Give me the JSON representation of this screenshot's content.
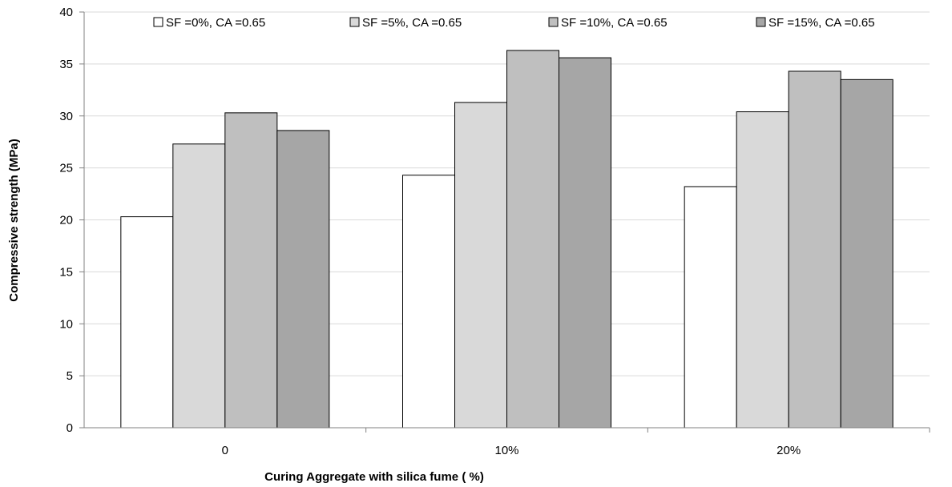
{
  "chart_data": {
    "type": "bar",
    "title": "",
    "xlabel": "Curing Aggregate with silica fume  ( %)",
    "ylabel": "Compressive strength (MPa)",
    "categories": [
      "0",
      "10%",
      "20%"
    ],
    "ylim": [
      0,
      40
    ],
    "yticks": [
      0,
      5,
      10,
      15,
      20,
      25,
      30,
      35,
      40
    ],
    "grid": "horizontal",
    "legend_position": "top",
    "series": [
      {
        "name": "SF =0%, CA =0.65",
        "values": [
          20.3,
          24.3,
          23.2
        ],
        "color": "#ffffff"
      },
      {
        "name": "SF =5%, CA =0.65",
        "values": [
          27.3,
          31.3,
          30.4
        ],
        "color": "#d9d9d9"
      },
      {
        "name": "SF =10%, CA =0.65",
        "values": [
          30.3,
          36.3,
          34.3
        ],
        "color": "#bfbfbf"
      },
      {
        "name": "SF =15%, CA =0.65",
        "values": [
          28.6,
          35.6,
          33.5
        ],
        "color": "#a6a6a6"
      }
    ]
  }
}
